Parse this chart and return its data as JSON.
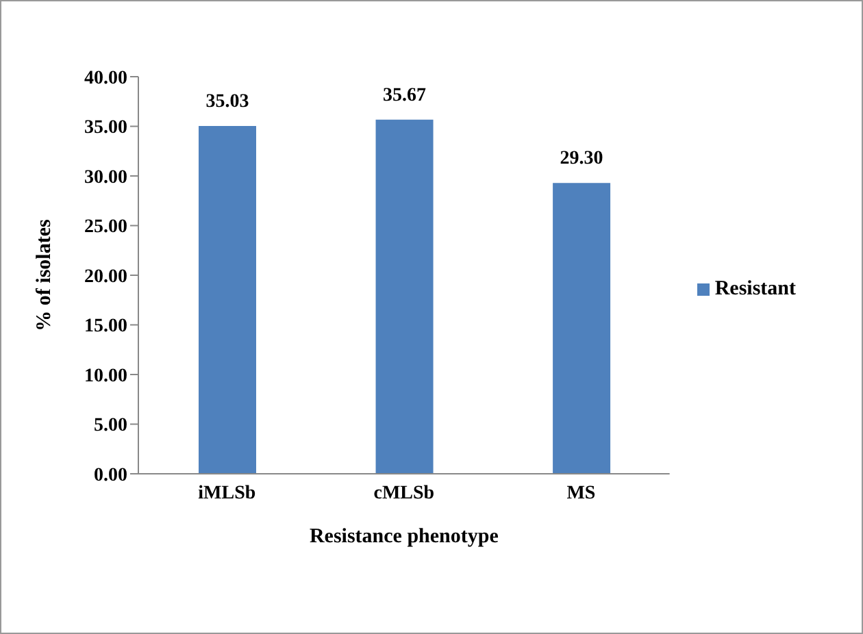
{
  "chart_data": {
    "type": "bar",
    "xlabel": "Resistance phenotype",
    "ylabel": "% of isolates",
    "categories": [
      "iMLSb",
      "cMLSb",
      "MS"
    ],
    "series": [
      {
        "name": "Resistant",
        "color": "#4f81bd",
        "values": [
          35.03,
          35.67,
          29.3
        ],
        "value_labels": [
          "35.03",
          "35.67",
          "29.30"
        ]
      }
    ],
    "ylim": [
      0,
      40
    ],
    "yticks": [
      {
        "value": 0,
        "label": "0.00"
      },
      {
        "value": 5,
        "label": "5.00"
      },
      {
        "value": 10,
        "label": "10.00"
      },
      {
        "value": 15,
        "label": "15.00"
      },
      {
        "value": 20,
        "label": "20.00"
      },
      {
        "value": 25,
        "label": "25.00"
      },
      {
        "value": 30,
        "label": "30.00"
      },
      {
        "value": 35,
        "label": "35.00"
      },
      {
        "value": 40,
        "label": "40.00"
      }
    ],
    "grid": false,
    "legend": "right"
  }
}
